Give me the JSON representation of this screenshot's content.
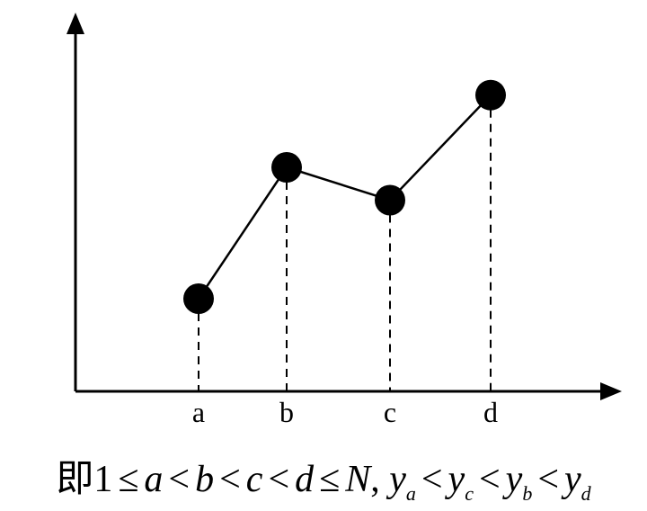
{
  "diagram": {
    "points": [
      {
        "label": "a",
        "y": 1.0
      },
      {
        "label": "b",
        "y": 3.0
      },
      {
        "label": "c",
        "y": 2.5
      },
      {
        "label": "d",
        "y": 4.1
      }
    ]
  },
  "caption": {
    "prefix": "即1",
    "le": "≤",
    "lt": "<",
    "a": "a",
    "b": "b",
    "c": "c",
    "d": "d",
    "N": "N",
    "comma": ",",
    "y": "y"
  }
}
